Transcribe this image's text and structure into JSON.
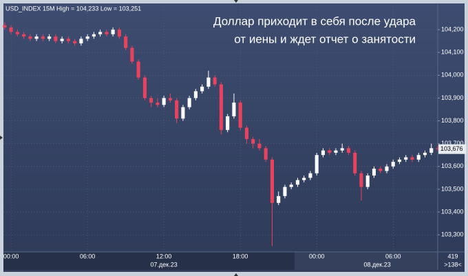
{
  "chart_data": {
    "type": "candlestick",
    "header": "USD_INDEX 15M High = 104,233 Low = 103,251",
    "title_lines": [
      "Доллар приходит в себя после удара",
      "от иены и ждет отчет о занятости"
    ],
    "x": [
      -0.5,
      0,
      0.5,
      1,
      1.5,
      2,
      2.5,
      3,
      3.5,
      4,
      4.5,
      5,
      5.5,
      6,
      6.5,
      7,
      7.5,
      8,
      8.5,
      9,
      9.5,
      10,
      10.5,
      11,
      11.5,
      12,
      12.5,
      13,
      13.5,
      14,
      14.5,
      15,
      15.5,
      16,
      16.5,
      17,
      17.5,
      18,
      18.5,
      19,
      19.5,
      20,
      20.5,
      21,
      21.5,
      22,
      22.5,
      23,
      23.5,
      24,
      24.5,
      25,
      25.5,
      26,
      26.5,
      27,
      27.5,
      28,
      28.5,
      29,
      29.5,
      30,
      30.5,
      31,
      31.5,
      32,
      32.5,
      33,
      33.5
    ],
    "open": [
      104.22,
      104.21,
      104.19,
      104.18,
      104.17,
      104.16,
      104.17,
      104.16,
      104.17,
      104.15,
      104.16,
      104.15,
      104.14,
      104.16,
      104.17,
      104.18,
      104.19,
      104.18,
      104.2,
      104.17,
      104.12,
      104.06,
      103.99,
      103.9,
      103.88,
      103.87,
      103.9,
      103.89,
      103.81,
      103.86,
      103.9,
      103.93,
      103.95,
      103.99,
      103.96,
      103.76,
      103.82,
      103.88,
      103.77,
      103.72,
      103.7,
      103.68,
      103.63,
      103.44,
      103.47,
      103.51,
      103.52,
      103.54,
      103.55,
      103.57,
      103.65,
      103.67,
      103.66,
      103.67,
      103.68,
      103.66,
      103.57,
      103.51,
      103.56,
      103.59,
      103.58,
      103.6,
      103.62,
      103.63,
      103.64,
      103.63,
      103.65,
      103.66,
      103.68
    ],
    "high": [
      104.233,
      104.22,
      104.2,
      104.19,
      104.18,
      104.18,
      104.18,
      104.18,
      104.18,
      104.17,
      104.17,
      104.16,
      104.17,
      104.18,
      104.19,
      104.2,
      104.2,
      104.21,
      104.21,
      104.18,
      104.13,
      104.07,
      104,
      103.91,
      103.9,
      103.91,
      103.92,
      103.9,
      103.87,
      103.91,
      103.94,
      103.96,
      104.02,
      104,
      103.97,
      103.83,
      103.92,
      103.89,
      103.78,
      103.73,
      103.72,
      103.69,
      103.64,
      103.49,
      103.52,
      103.53,
      103.55,
      103.56,
      103.58,
      103.66,
      103.68,
      103.68,
      103.68,
      103.7,
      103.69,
      103.67,
      103.58,
      103.57,
      103.6,
      103.6,
      103.61,
      103.63,
      103.64,
      103.65,
      103.65,
      103.66,
      103.67,
      103.7,
      103.69
    ],
    "low": [
      104.2,
      104.18,
      104.17,
      104.16,
      104.15,
      104.15,
      104.15,
      104.15,
      104.14,
      104.14,
      104.14,
      104.13,
      104.13,
      104.15,
      104.16,
      104.17,
      104.17,
      104.17,
      104.16,
      104.11,
      104.05,
      103.98,
      103.89,
      103.86,
      103.86,
      103.86,
      103.88,
      103.79,
      103.8,
      103.85,
      103.89,
      103.92,
      103.94,
      103.95,
      103.74,
      103.75,
      103.81,
      103.76,
      103.7,
      103.68,
      103.67,
      103.62,
      103.251,
      103.43,
      103.46,
      103.5,
      103.51,
      103.53,
      103.54,
      103.56,
      103.64,
      103.65,
      103.65,
      103.66,
      103.65,
      103.56,
      103.45,
      103.5,
      103.55,
      103.57,
      103.57,
      103.59,
      103.61,
      103.62,
      103.62,
      103.62,
      103.64,
      103.65,
      103.67
    ],
    "close": [
      104.21,
      104.19,
      104.18,
      104.17,
      104.16,
      104.17,
      104.16,
      104.17,
      104.15,
      104.16,
      104.15,
      104.14,
      104.16,
      104.17,
      104.18,
      104.19,
      104.18,
      104.2,
      104.17,
      104.12,
      104.06,
      103.99,
      103.9,
      103.88,
      103.87,
      103.9,
      103.89,
      103.81,
      103.86,
      103.9,
      103.93,
      103.95,
      103.99,
      103.96,
      103.76,
      103.82,
      103.88,
      103.77,
      103.72,
      103.7,
      103.68,
      103.63,
      103.44,
      103.47,
      103.51,
      103.52,
      103.54,
      103.55,
      103.57,
      103.65,
      103.67,
      103.66,
      103.67,
      103.68,
      103.66,
      103.57,
      103.51,
      103.56,
      103.59,
      103.58,
      103.6,
      103.62,
      103.63,
      103.64,
      103.63,
      103.65,
      103.66,
      103.68,
      103.676
    ],
    "up_color": "#ffffff",
    "down_color": "#e8435e",
    "xlim": [
      -0.6,
      33.5
    ],
    "xticks": [
      {
        "value": 0,
        "label": "00:00"
      },
      {
        "value": 6,
        "label": "06:00"
      },
      {
        "value": 12,
        "label": "12:00"
      },
      {
        "value": 18,
        "label": "18:00"
      },
      {
        "value": 24,
        "label": "00:00"
      },
      {
        "value": 30,
        "label": "06:00"
      }
    ],
    "date_labels": [
      {
        "value": 12,
        "label": "07.дек.23"
      },
      {
        "value": 28.75,
        "label": "08.дек.23"
      }
    ],
    "ylim": [
      103.228,
      104.3
    ],
    "yticks": [
      {
        "value": 104.2,
        "label": "104,200"
      },
      {
        "value": 104.1,
        "label": "104,100"
      },
      {
        "value": 104.0,
        "label": "104,000"
      },
      {
        "value": 103.9,
        "label": "103,900"
      },
      {
        "value": 103.8,
        "label": "103,800"
      },
      {
        "value": 103.7,
        "label": "103,700"
      },
      {
        "value": 103.6,
        "label": "103,600"
      },
      {
        "value": 103.5,
        "label": "103,500"
      },
      {
        "value": 103.4,
        "label": "103,400"
      },
      {
        "value": 103.3,
        "label": "103,300"
      }
    ],
    "current_price": {
      "value": 103.676,
      "label": "103,676"
    },
    "corner_labels": [
      "419",
      ">138<"
    ],
    "grid": true
  }
}
